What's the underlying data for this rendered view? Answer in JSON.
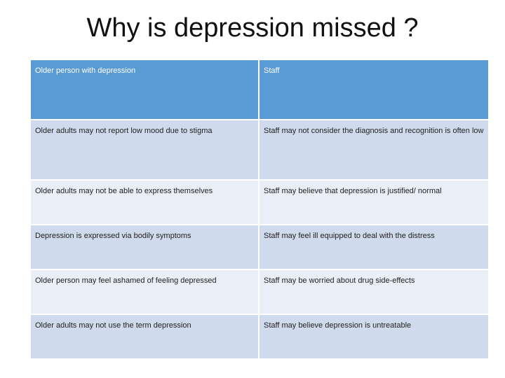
{
  "slide": {
    "title": "Why is depression missed ?"
  },
  "table": {
    "headers": [
      "Older person with depression",
      "Staff"
    ],
    "rows": [
      [
        "Older adults may not report low mood due to stigma",
        "Staff may not consider the diagnosis and recognition is often low"
      ],
      [
        "Older adults may not be able to express themselves",
        "Staff may believe that depression is justified/ normal"
      ],
      [
        "Depression is expressed via bodily symptoms",
        "Staff may feel ill equipped to deal with the distress"
      ],
      [
        "Older person may feel ashamed of feeling depressed",
        "Staff may be worried about drug side-effects"
      ],
      [
        "Older adults may not use the term depression",
        "Staff may believe depression is untreatable"
      ]
    ]
  },
  "colors": {
    "header_bg": "#5b9bd5",
    "row_odd_bg": "#cfdbec",
    "row_even_bg": "#e9eef7"
  }
}
